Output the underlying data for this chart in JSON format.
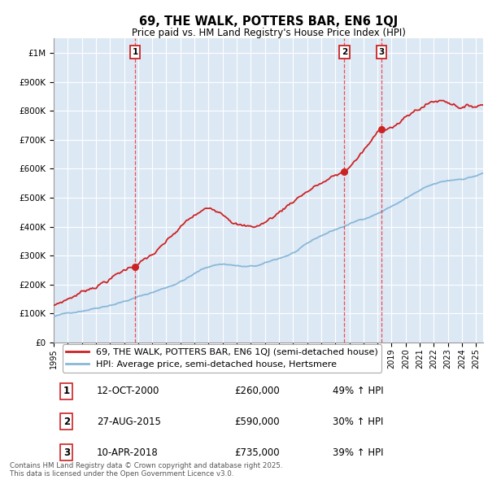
{
  "title": "69, THE WALK, POTTERS BAR, EN6 1QJ",
  "subtitle": "Price paid vs. HM Land Registry's House Price Index (HPI)",
  "legend_label_red": "69, THE WALK, POTTERS BAR, EN6 1QJ (semi-detached house)",
  "legend_label_blue": "HPI: Average price, semi-detached house, Hertsmere",
  "footer": "Contains HM Land Registry data © Crown copyright and database right 2025.\nThis data is licensed under the Open Government Licence v3.0.",
  "transactions": [
    {
      "num": 1,
      "date": "12-OCT-2000",
      "price": "£260,000",
      "year": 2000.79,
      "price_val": 260000,
      "pct": "49% ↑ HPI"
    },
    {
      "num": 2,
      "date": "27-AUG-2015",
      "price": "£590,000",
      "year": 2015.65,
      "price_val": 590000,
      "pct": "30% ↑ HPI"
    },
    {
      "num": 3,
      "date": "10-APR-2018",
      "price": "£735,000",
      "year": 2018.27,
      "price_val": 735000,
      "pct": "39% ↑ HPI"
    }
  ],
  "xlim": [
    1995.0,
    2025.5
  ],
  "ylim": [
    0,
    1050000
  ],
  "yticks": [
    0,
    100000,
    200000,
    300000,
    400000,
    500000,
    600000,
    700000,
    800000,
    900000,
    1000000
  ],
  "ytick_labels": [
    "£0",
    "£100K",
    "£200K",
    "£300K",
    "£400K",
    "£500K",
    "£600K",
    "£700K",
    "£800K",
    "£900K",
    "£1M"
  ],
  "xticks": [
    1995,
    1996,
    1997,
    1998,
    1999,
    2000,
    2001,
    2002,
    2003,
    2004,
    2005,
    2006,
    2007,
    2008,
    2009,
    2010,
    2011,
    2012,
    2013,
    2014,
    2015,
    2016,
    2017,
    2018,
    2019,
    2020,
    2021,
    2022,
    2023,
    2024,
    2025
  ],
  "bg_color": "#dde8f5",
  "grid_color": "#ffffff",
  "red_color": "#cc2222",
  "blue_color": "#88b8d8",
  "fig_bg": "#ffffff"
}
